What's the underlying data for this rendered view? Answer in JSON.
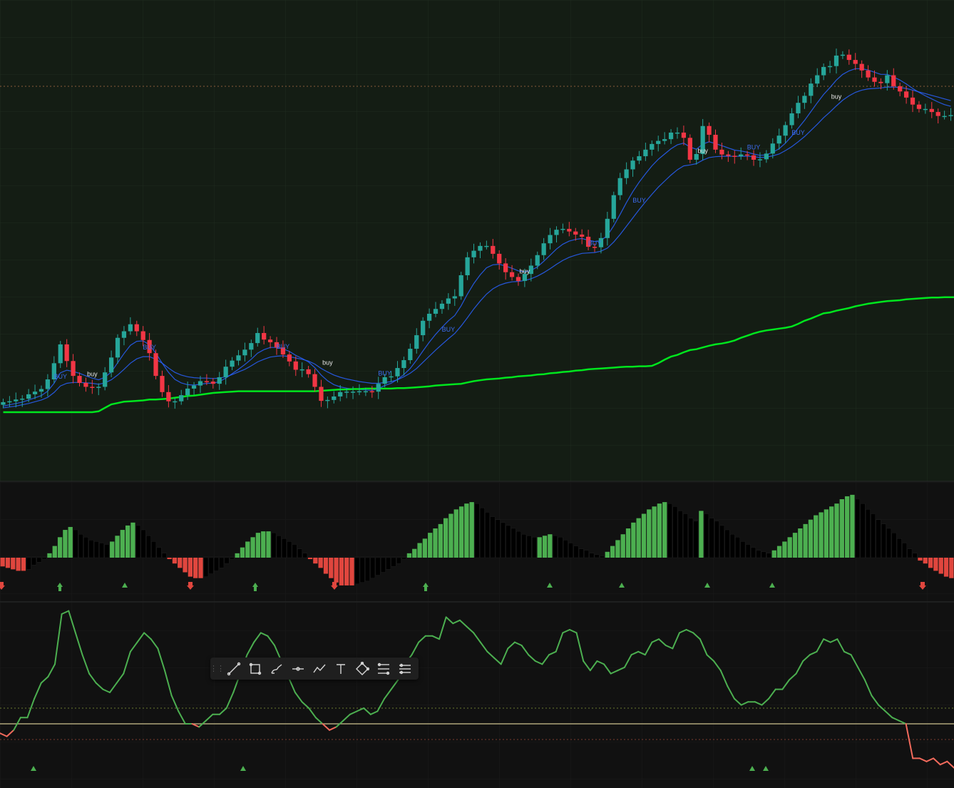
{
  "toolbar": {
    "tools": [
      {
        "name": "trend-line-icon",
        "icon": "trend-line"
      },
      {
        "name": "rectangle-icon",
        "icon": "rectangle"
      },
      {
        "name": "brush-icon",
        "icon": "brush"
      },
      {
        "name": "horizontal-ray-icon",
        "icon": "horizontal-ray"
      },
      {
        "name": "path-icon",
        "icon": "path"
      },
      {
        "name": "text-icon",
        "icon": "text"
      },
      {
        "name": "pattern-icon",
        "icon": "pattern"
      },
      {
        "name": "fib-retracement-icon",
        "icon": "fib-retracement"
      },
      {
        "name": "parallel-channel-icon",
        "icon": "parallel-channel"
      }
    ]
  },
  "colors": {
    "up": "#26a69a",
    "down": "#f23645",
    "slow_ma": "#00e61e",
    "fast_ma": "#2962ff",
    "hist_up": "#4caf50",
    "hist_down": "#e0463e",
    "hist_fade": "#000000",
    "osc_up": "#4caf50",
    "osc_down": "#f26a5c",
    "mid_line": "#b0a67a"
  },
  "chart_data": [
    {
      "type": "candlestick",
      "series": [
        {
          "name": "price",
          "close": [
            432.1,
            432.3,
            432.7,
            432.9,
            433.9,
            434.5,
            435.1,
            437.3,
            441.0,
            445.3,
            441.5,
            438.1,
            436.5,
            435.6,
            435.4,
            435.6,
            438.9,
            442.3,
            446.8,
            448.3,
            449.9,
            448.3,
            446.3,
            443.3,
            438.1,
            434.4,
            432.3,
            432.3,
            433.7,
            435.2,
            435.9,
            436.9,
            436.8,
            436.3,
            437.8,
            440.2,
            441.6,
            442.8,
            444.1,
            445.6,
            447.9,
            446.4,
            445.8,
            444.6,
            443.0,
            441.4,
            439.5,
            439.6,
            438.5,
            435.6,
            432.4,
            432.6,
            433.4,
            434.4,
            434.5,
            434.5,
            434.6,
            434.6,
            434.5,
            436.3,
            437.8,
            438.0,
            439.9,
            441.7,
            444.3,
            447.4,
            450.7,
            452.3,
            453.4,
            454.6,
            455.8,
            456.3,
            461.1,
            465.2,
            466.7,
            467.8,
            467.8,
            466.0,
            463.8,
            461.8,
            460.7,
            459.8,
            461.4,
            463.3,
            465.7,
            468.4,
            470.3,
            471.5,
            471.7,
            471.1,
            470.4,
            469.9,
            467.6,
            467.5,
            469.6,
            474.0,
            479.4,
            483.3,
            485.3,
            487.3,
            488.3,
            489.8,
            491.1,
            491.8,
            492.2,
            493.7,
            493.7,
            492.5,
            487.5,
            488.8,
            495.2,
            493.2,
            489.8,
            488.7,
            488.4,
            488.3,
            488.7,
            488.5,
            487.5,
            487.6,
            488.9,
            491.2,
            493.0,
            495.4,
            498.1,
            500.5,
            502.1,
            504.9,
            506.8,
            508.7,
            508.9,
            511.3,
            511.5,
            510.3,
            509.4,
            507.9,
            506.3,
            505.3,
            505.0,
            506.8,
            504.3,
            503.1,
            501.7,
            500.1,
            499.1,
            499.1,
            498.4,
            497.5,
            497.5,
            497.7
          ]
        }
      ]
    },
    {
      "type": "line",
      "series": [
        {
          "name": "fast",
          "values": [
            431.2,
            431.5,
            431.8,
            432.1,
            432.6,
            433.1,
            433.6,
            434.6,
            436.4,
            438.8,
            439.4,
            439.1,
            438.7,
            438.1,
            437.6,
            437.2,
            437.8,
            439.0,
            441.1,
            443.2,
            445.1,
            446.0,
            446.1,
            445.2,
            443.3,
            441.0,
            438.9,
            437.3,
            436.5,
            436.1,
            436.0,
            436.2,
            436.4,
            436.4,
            436.8,
            437.6,
            438.6,
            439.6,
            440.7,
            441.9,
            443.3,
            444.1,
            444.6,
            444.6,
            444.3,
            443.7,
            442.8,
            442.1,
            441.3,
            440.0,
            438.3,
            437.0,
            436.1,
            435.6,
            435.3,
            435.1,
            435.0,
            434.9,
            434.8,
            435.2,
            435.9,
            436.4,
            437.3,
            438.4,
            439.8,
            441.7,
            443.8,
            445.8,
            447.6,
            449.2,
            450.7,
            451.9,
            454.1,
            456.8,
            459.2,
            461.2,
            462.8,
            463.5,
            463.6,
            463.2,
            462.7,
            462.1,
            461.9,
            462.2,
            463.0,
            464.3,
            465.7,
            467.1,
            468.2,
            468.9,
            469.3,
            469.5,
            469.1,
            468.8,
            469.0,
            470.2,
            472.4,
            475.0,
            477.7,
            480.2,
            482.4,
            484.3,
            486.1,
            487.6,
            488.8,
            490.0,
            490.9,
            491.3,
            490.4,
            489.9,
            491.1,
            491.6,
            491.2,
            490.7,
            490.2,
            489.7,
            489.5,
            489.2,
            488.8,
            488.5,
            488.6,
            489.2,
            490.0,
            491.3,
            492.9,
            494.7,
            496.5,
            498.5,
            500.5,
            502.4,
            504.0,
            505.7,
            507.0,
            507.8,
            508.3,
            508.3,
            508.0,
            507.5,
            507.0,
            507.0,
            506.4,
            505.7,
            504.8,
            503.8,
            502.9,
            502.1,
            501.4,
            500.7,
            500.1,
            499.7
          ]
        },
        {
          "name": "medium",
          "values": [
            430.8,
            431.0,
            431.2,
            431.5,
            431.8,
            432.2,
            432.6,
            433.2,
            434.3,
            435.8,
            436.4,
            436.6,
            436.6,
            436.5,
            436.4,
            436.2,
            436.5,
            437.2,
            438.3,
            439.6,
            441.0,
            442.0,
            442.5,
            442.5,
            441.9,
            441.0,
            439.9,
            438.9,
            438.3,
            437.9,
            437.7,
            437.6,
            437.6,
            437.5,
            437.6,
            437.9,
            438.4,
            439.0,
            439.6,
            440.4,
            441.3,
            441.9,
            442.4,
            442.6,
            442.7,
            442.5,
            442.2,
            441.9,
            441.5,
            440.8,
            439.8,
            439.0,
            438.3,
            437.8,
            437.4,
            437.1,
            436.8,
            436.6,
            436.4,
            436.4,
            436.6,
            436.8,
            437.2,
            437.9,
            438.7,
            439.8,
            441.2,
            442.6,
            444.0,
            445.3,
            446.6,
            447.8,
            449.5,
            451.4,
            453.4,
            455.2,
            456.8,
            458.0,
            458.8,
            459.3,
            459.6,
            459.7,
            459.9,
            460.3,
            460.9,
            461.7,
            462.6,
            463.6,
            464.5,
            465.2,
            465.7,
            466.1,
            466.2,
            466.3,
            466.6,
            467.3,
            468.7,
            470.4,
            472.3,
            474.2,
            476.1,
            477.9,
            479.6,
            481.2,
            482.6,
            484.0,
            485.2,
            486.1,
            486.3,
            486.6,
            487.4,
            488.0,
            488.2,
            488.3,
            488.3,
            488.3,
            488.3,
            488.3,
            488.2,
            488.0,
            488.1,
            488.4,
            488.8,
            489.6,
            490.5,
            491.6,
            492.8,
            494.2,
            495.6,
            497.1,
            498.4,
            499.8,
            501.1,
            502.1,
            502.9,
            503.4,
            503.7,
            503.8,
            503.9,
            504.1,
            504.1,
            504.0,
            503.8,
            503.4,
            503.0,
            502.6,
            502.2,
            501.8,
            501.4,
            501.0
          ]
        },
        {
          "name": "slow",
          "values": [
            429.8,
            429.8,
            429.8,
            429.8,
            429.8,
            429.8,
            429.8,
            429.8,
            429.8,
            429.8,
            429.8,
            429.8,
            429.8,
            429.8,
            429.8,
            430.0,
            430.8,
            431.6,
            431.9,
            432.2,
            432.3,
            432.4,
            432.5,
            432.7,
            432.7,
            432.8,
            432.9,
            433.1,
            433.3,
            433.5,
            433.6,
            433.8,
            434.0,
            434.2,
            434.3,
            434.4,
            434.5,
            434.6,
            434.6,
            434.6,
            434.6,
            434.6,
            434.6,
            434.6,
            434.6,
            434.6,
            434.6,
            434.6,
            434.6,
            434.6,
            434.7,
            434.8,
            434.9,
            435.0,
            435.0,
            435.1,
            435.1,
            435.2,
            435.2,
            435.2,
            435.2,
            435.2,
            435.3,
            435.3,
            435.4,
            435.5,
            435.6,
            435.7,
            435.9,
            436.0,
            436.1,
            436.2,
            436.3,
            436.6,
            436.9,
            437.1,
            437.3,
            437.4,
            437.5,
            437.7,
            437.8,
            438.0,
            438.1,
            438.2,
            438.4,
            438.5,
            438.7,
            438.8,
            439.0,
            439.1,
            439.3,
            439.4,
            439.6,
            439.7,
            439.8,
            439.9,
            440.0,
            440.1,
            440.2,
            440.2,
            440.3,
            440.3,
            440.4,
            441.0,
            441.8,
            442.5,
            442.9,
            443.5,
            444.0,
            444.2,
            444.6,
            445.0,
            445.3,
            445.5,
            445.8,
            446.2,
            446.8,
            447.3,
            447.8,
            448.2,
            448.5,
            448.7,
            448.9,
            449.1,
            449.4,
            450.0,
            450.7,
            451.2,
            451.8,
            452.4,
            452.6,
            453.0,
            453.3,
            453.6,
            454.0,
            454.3,
            454.6,
            454.8,
            455.0,
            455.2,
            455.3,
            455.4,
            455.6,
            455.7,
            455.8,
            455.9,
            456.0,
            456.0,
            456.1,
            456.1,
            456.1,
            456.2
          ]
        }
      ],
      "annotations": [
        "BUY",
        "buy"
      ]
    },
    {
      "type": "bar",
      "series": [
        {
          "name": "momentum",
          "values": [
            -6,
            -7,
            -8,
            -9,
            -9,
            -8,
            -5,
            -3,
            -1,
            3,
            8,
            14,
            19,
            21,
            19,
            16,
            14,
            12,
            11,
            10,
            9,
            11,
            15,
            19,
            22,
            24,
            22,
            19,
            15,
            11,
            7,
            3,
            -1,
            -4,
            -7,
            -10,
            -13,
            -14,
            -14,
            -13,
            -11,
            -9,
            -7,
            -4,
            -1,
            3,
            7,
            11,
            14,
            17,
            18,
            18,
            17,
            15,
            13,
            11,
            9,
            6,
            3,
            -1,
            -4,
            -7,
            -11,
            -14,
            -17,
            -19,
            -19,
            -19,
            -18,
            -17,
            -16,
            -14,
            -12,
            -10,
            -8,
            -6,
            -4,
            -1,
            3,
            6,
            10,
            13,
            17,
            20,
            23,
            27,
            30,
            33,
            35,
            37,
            38,
            37,
            34,
            31,
            28,
            26,
            24,
            22,
            20,
            18,
            16,
            15,
            14,
            14,
            15,
            16,
            15,
            14,
            12,
            10,
            8,
            6,
            5,
            3,
            2,
            1,
            4,
            8,
            12,
            16,
            20,
            24,
            27,
            30,
            33,
            35,
            37,
            38,
            37,
            35,
            32,
            30,
            27,
            25,
            32,
            30,
            27,
            25,
            22,
            19,
            16,
            14,
            11,
            9,
            7,
            5,
            4,
            3,
            5,
            8,
            11,
            14,
            17,
            20,
            23,
            26,
            29,
            31,
            33,
            35,
            37,
            40,
            42,
            43,
            40,
            37,
            33,
            30,
            26,
            23,
            20,
            17,
            13,
            10,
            6,
            3,
            -2,
            -4,
            -7,
            -9,
            -11,
            -13,
            -14
          ]
        }
      ],
      "annotations": [
        "up-arrow",
        "down-arrow",
        "up-triangle"
      ]
    },
    {
      "type": "line",
      "series": [
        {
          "name": "oscillator",
          "values": [
            47,
            46,
            48,
            52,
            52,
            58,
            63,
            65,
            69,
            85,
            86,
            79,
            72,
            66,
            63,
            61,
            60,
            63,
            66,
            73,
            76,
            79,
            77,
            74,
            67,
            59,
            54,
            50,
            50,
            49,
            51,
            53,
            53,
            55,
            60,
            66,
            72,
            76,
            79,
            78,
            75,
            70,
            65,
            60,
            57,
            55,
            52,
            50,
            48,
            49,
            51,
            53,
            54,
            55,
            53,
            54,
            58,
            61,
            64,
            69,
            72,
            76,
            78,
            78,
            77,
            84,
            82,
            83,
            81,
            79,
            76,
            73,
            71,
            69,
            74,
            76,
            75,
            72,
            70,
            69,
            72,
            73,
            79,
            80,
            79,
            70,
            67,
            70,
            69,
            66,
            67,
            68,
            72,
            73,
            72,
            76,
            77,
            75,
            74,
            79,
            80,
            79,
            77,
            72,
            70,
            67,
            62,
            58,
            56,
            57,
            57,
            56,
            58,
            61,
            61,
            64,
            66,
            70,
            72,
            73,
            77,
            76,
            77,
            73,
            72,
            68,
            64,
            59,
            56,
            54,
            52,
            51,
            50,
            39,
            39,
            38,
            39,
            37,
            38,
            36
          ]
        }
      ],
      "annotations": [
        "up-triangle"
      ]
    }
  ]
}
